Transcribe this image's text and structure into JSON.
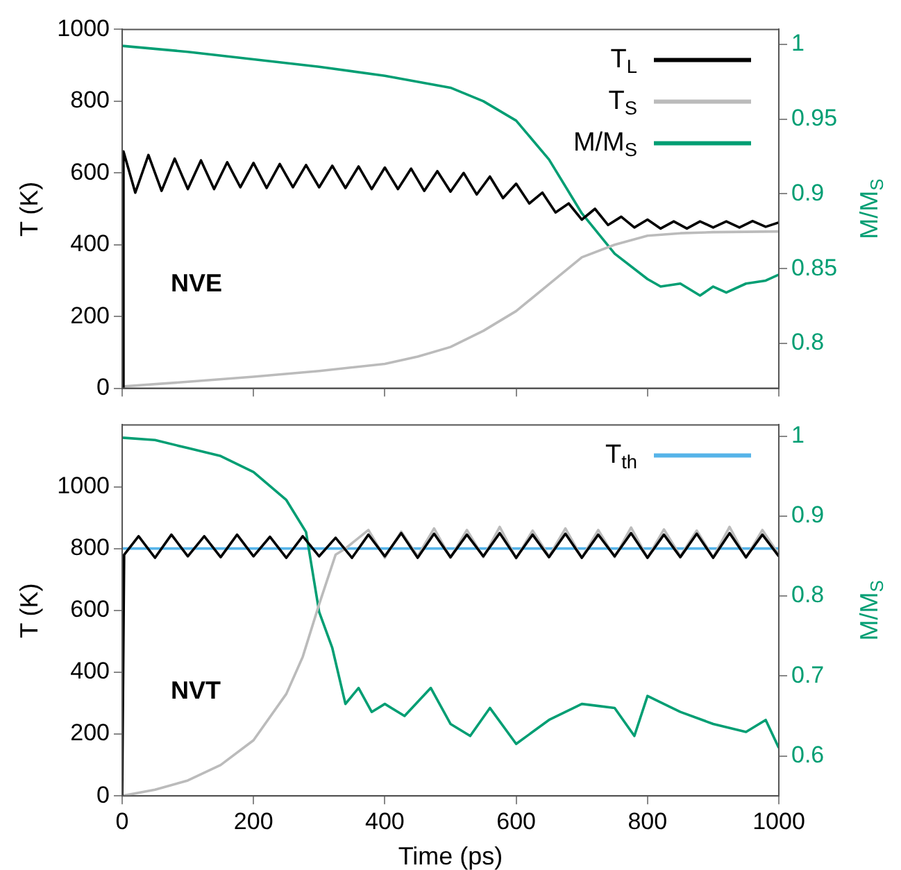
{
  "chart_data": [
    {
      "type": "line",
      "ylabel": "T (K)",
      "y2label": "M/M$_{S}$",
      "annotations": [
        "NVE"
      ],
      "xlim": [
        0,
        1000
      ],
      "xticks": [
        0,
        200,
        400,
        600,
        800,
        1000
      ],
      "ylim": [
        0,
        1000
      ],
      "yticks": [
        0,
        200,
        400,
        600,
        800,
        1000
      ],
      "y2lim": [
        0.77,
        1.01
      ],
      "y2ticks": [
        0.8,
        0.85,
        0.9,
        0.95,
        1
      ],
      "tick_labels": "y",
      "grid": false,
      "legend": "top right",
      "marker": "none",
      "line_style": "solid",
      "series": [
        {
          "name": "T$_{L}$",
          "color": "#000000",
          "x": [
            0,
            2,
            20,
            40,
            60,
            80,
            100,
            120,
            140,
            160,
            180,
            200,
            220,
            240,
            260,
            280,
            300,
            320,
            340,
            360,
            380,
            400,
            420,
            440,
            460,
            480,
            500,
            520,
            540,
            560,
            580,
            600,
            620,
            640,
            660,
            680,
            700,
            720,
            740,
            760,
            780,
            800,
            820,
            840,
            860,
            880,
            900,
            920,
            940,
            960,
            980,
            1000
          ],
          "values": [
            0,
            660,
            545,
            650,
            550,
            640,
            555,
            635,
            555,
            630,
            560,
            628,
            558,
            625,
            560,
            622,
            560,
            620,
            558,
            618,
            555,
            615,
            555,
            612,
            550,
            605,
            548,
            600,
            540,
            590,
            530,
            570,
            515,
            545,
            490,
            515,
            470,
            500,
            455,
            478,
            448,
            470,
            445,
            465,
            445,
            465,
            448,
            465,
            448,
            466,
            450,
            462
          ]
        },
        {
          "name": "T$_{S}$",
          "color": "#bbbbbb",
          "x": [
            0,
            100,
            200,
            300,
            400,
            450,
            500,
            550,
            600,
            650,
            700,
            750,
            800,
            850,
            900,
            950,
            1000
          ],
          "values": [
            5,
            18,
            32,
            48,
            68,
            88,
            115,
            160,
            215,
            290,
            365,
            400,
            425,
            432,
            435,
            436,
            437
          ]
        },
        {
          "name": "M/M$_{S}$",
          "color": "#009e73",
          "axis": "y2",
          "x": [
            0,
            100,
            200,
            300,
            400,
            500,
            550,
            600,
            650,
            700,
            750,
            800,
            820,
            850,
            880,
            900,
            920,
            950,
            980,
            1000
          ],
          "values": [
            0.999,
            0.995,
            0.99,
            0.985,
            0.979,
            0.971,
            0.962,
            0.949,
            0.923,
            0.887,
            0.86,
            0.843,
            0.838,
            0.84,
            0.832,
            0.838,
            0.834,
            0.84,
            0.842,
            0.846
          ]
        }
      ]
    },
    {
      "type": "line",
      "xlabel": "Time (ps)",
      "ylabel": "T (K)",
      "y2label": "M/M$_{S}$",
      "annotations": [
        "NVT"
      ],
      "xlim": [
        0,
        1000
      ],
      "xticks": [
        0,
        200,
        400,
        600,
        800,
        1000
      ],
      "ylim": [
        0,
        1200
      ],
      "yticks": [
        0,
        200,
        400,
        600,
        800,
        1000
      ],
      "y2lim": [
        0.55,
        1.014
      ],
      "y2ticks": [
        0.6,
        0.7,
        0.8,
        0.9,
        1
      ],
      "grid": false,
      "legend": "top right",
      "marker": "none",
      "line_style": "solid",
      "series": [
        {
          "color": "#000000",
          "x": [
            0,
            3,
            25,
            50,
            75,
            100,
            125,
            150,
            175,
            200,
            225,
            250,
            275,
            300,
            325,
            350,
            375,
            400,
            425,
            450,
            475,
            500,
            525,
            550,
            575,
            600,
            625,
            650,
            675,
            700,
            725,
            750,
            775,
            800,
            825,
            850,
            875,
            900,
            925,
            950,
            975,
            1000
          ],
          "values": [
            0,
            780,
            840,
            770,
            845,
            775,
            840,
            772,
            845,
            775,
            838,
            770,
            840,
            775,
            835,
            770,
            845,
            775,
            850,
            770,
            848,
            772,
            845,
            775,
            850,
            770,
            845,
            772,
            848,
            770,
            845,
            775,
            850,
            770,
            845,
            772,
            848,
            770,
            850,
            772,
            845,
            775
          ]
        },
        {
          "color": "#bbbbbb",
          "x": [
            0,
            50,
            100,
            150,
            200,
            250,
            275,
            300,
            325,
            340,
            375,
            400,
            425,
            450,
            475,
            500,
            525,
            550,
            575,
            600,
            625,
            650,
            675,
            700,
            725,
            750,
            775,
            800,
            825,
            850,
            875,
            900,
            925,
            950,
            975,
            1000
          ],
          "values": [
            0,
            20,
            50,
            100,
            180,
            330,
            450,
            620,
            780,
            800,
            860,
            770,
            855,
            775,
            865,
            770,
            860,
            772,
            870,
            768,
            858,
            775,
            865,
            770,
            860,
            772,
            868,
            770,
            862,
            775,
            858,
            772,
            870,
            770,
            860,
            780
          ]
        },
        {
          "color": "#009e73",
          "axis": "y2",
          "x": [
            0,
            50,
            100,
            150,
            200,
            250,
            280,
            300,
            320,
            340,
            360,
            380,
            400,
            430,
            470,
            500,
            530,
            560,
            600,
            650,
            700,
            750,
            780,
            800,
            850,
            900,
            950,
            980,
            1000
          ],
          "values": [
            0.998,
            0.995,
            0.985,
            0.975,
            0.955,
            0.92,
            0.88,
            0.78,
            0.735,
            0.665,
            0.685,
            0.655,
            0.665,
            0.65,
            0.685,
            0.64,
            0.625,
            0.66,
            0.615,
            0.645,
            0.665,
            0.66,
            0.625,
            0.675,
            0.655,
            0.64,
            0.63,
            0.645,
            0.61
          ]
        },
        {
          "name": "T$_{th}$",
          "color": "#56b4e9",
          "x": [
            0,
            1000
          ],
          "values": [
            800,
            800
          ]
        }
      ]
    }
  ]
}
